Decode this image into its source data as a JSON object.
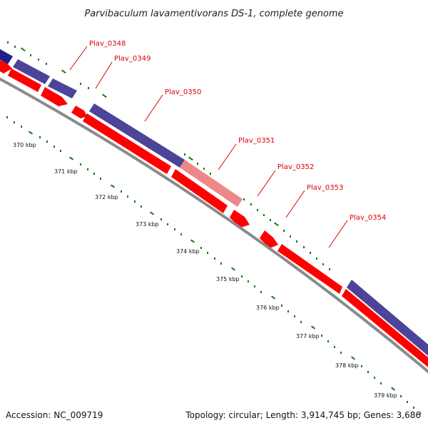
{
  "title": "Parvibaculum lavamentivorans DS-1, complete genome",
  "footer": {
    "accession": "Accession: NC_009719",
    "summary": "Topology: circular; Length: 3,914,745 bp; Genes: 3,686"
  },
  "scale_labels": [
    "370 kbp",
    "371 kbp",
    "372 kbp",
    "373 kbp",
    "374 kbp",
    "375 kbp",
    "376 kbp",
    "377 kbp",
    "378 kbp",
    "379 kbp"
  ],
  "gene_labels": [
    "Plav_0348",
    "Plav_0349",
    "Plav_0350",
    "Plav_0351",
    "Plav_0352",
    "Plav_0353",
    "Plav_0354"
  ],
  "colors": {
    "cds": "#ff0000",
    "blast_hit": "#4b4499",
    "blast_hit_dark": "#1f1f8a",
    "blast_hit_weak": "#ee8888",
    "backbone": "#8a8a8a",
    "ticks": "#137a13",
    "labels": "#e00000"
  }
}
